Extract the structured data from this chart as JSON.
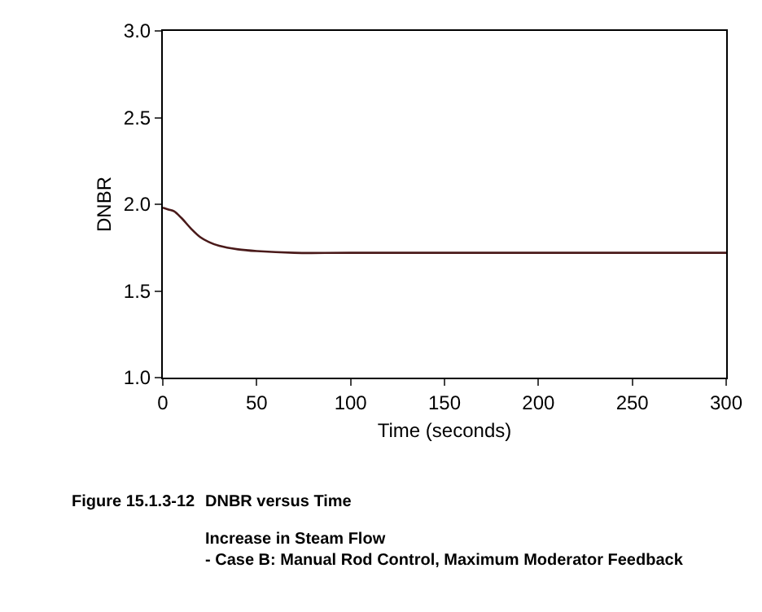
{
  "chart_data": {
    "type": "line",
    "xlabel": "Time (seconds)",
    "ylabel": "DNBR",
    "x": [
      0,
      3,
      6,
      10,
      15,
      20,
      25,
      30,
      40,
      50,
      70,
      100,
      300
    ],
    "series": [
      {
        "color": "#4a1a1a",
        "values": [
          1.98,
          1.97,
          1.96,
          1.92,
          1.86,
          1.81,
          1.78,
          1.76,
          1.74,
          1.73,
          1.72,
          1.72,
          1.72
        ]
      }
    ],
    "xlim": [
      0,
      300
    ],
    "xticks": [
      0,
      50,
      100,
      150,
      200,
      250,
      300
    ],
    "ylim": [
      1.0,
      3.0
    ],
    "yticks": [
      {
        "value": 1.0,
        "label": "1.0"
      },
      {
        "value": 1.5,
        "label": "1.5"
      },
      {
        "value": 2.0,
        "label": "2.0"
      },
      {
        "value": 2.5,
        "label": "2.5"
      },
      {
        "value": 3.0,
        "label": "3.0"
      }
    ],
    "legend": false,
    "marker": "none",
    "line_style": "solid",
    "annotations": [
      "Figure 15.1.3-12",
      "DNBR versus Time",
      "Increase in Steam Flow\n- Case B: Manual Rod Control, Maximum Moderator Feedback"
    ]
  }
}
